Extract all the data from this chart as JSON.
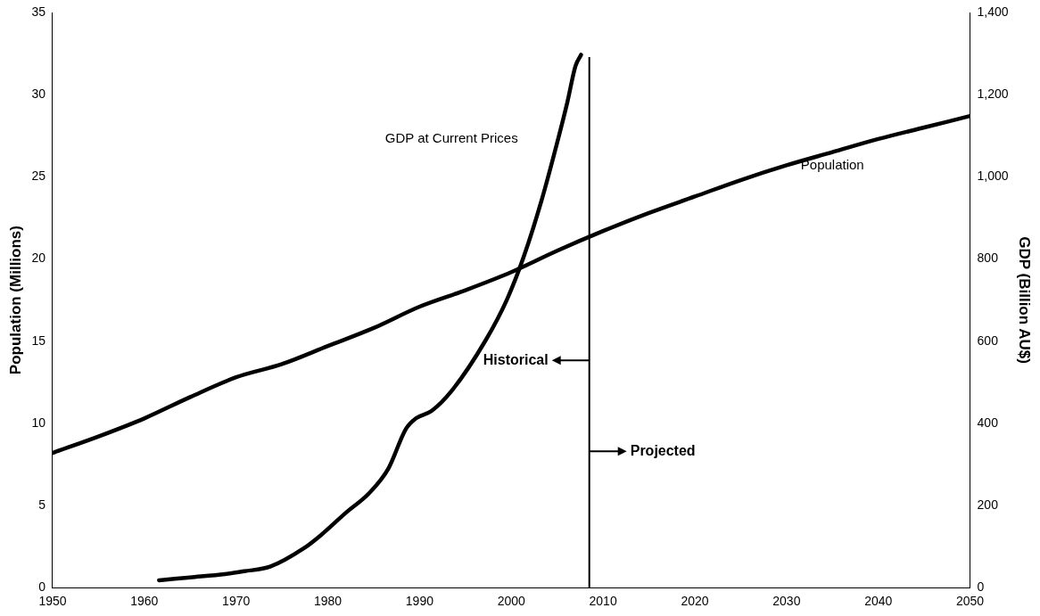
{
  "chart_data": {
    "type": "line",
    "ylabel": "Population (Millions)",
    "y2label": "GDP (Billion AU$)",
    "xlim": [
      1950,
      2050
    ],
    "xticks": [
      1950,
      1960,
      1970,
      1980,
      1990,
      2000,
      2010,
      2020,
      2030,
      2040,
      2050
    ],
    "ylim": [
      0,
      35
    ],
    "yticks": [
      0,
      5,
      10,
      15,
      20,
      25,
      30,
      35
    ],
    "y2lim": [
      0,
      1400
    ],
    "y2ticks": [
      0,
      200,
      400,
      600,
      800,
      {
        "value": 1000,
        "label": "1,000"
      },
      {
        "value": 1200,
        "label": "1,200"
      },
      {
        "value": 1400,
        "label": "1,400"
      }
    ],
    "grid": false,
    "legend": false,
    "marker": "none",
    "line_style": "solid",
    "series": [
      {
        "name": "Population",
        "color": "#000000",
        "x": [
          1950,
          1955,
          1960,
          1965,
          1970,
          1975,
          1980,
          1985,
          1990,
          1995,
          2000,
          2005,
          2010,
          2015,
          2020,
          2025,
          2030,
          2035,
          2040,
          2045,
          2050
        ],
        "values": [
          8.2,
          9.2,
          10.3,
          11.6,
          12.8,
          13.6,
          14.7,
          15.8,
          17.1,
          18.1,
          19.2,
          20.5,
          21.7,
          22.8,
          23.8,
          24.8,
          25.7,
          26.5,
          27.3,
          28.0,
          28.7
        ]
      },
      {
        "name": "GDP at Current Prices",
        "axis": "y2",
        "color": "#000000",
        "x": [
          1961.6,
          1965,
          1968.8,
          1970.9,
          1973.7,
          1977.4,
          1979.2,
          1982,
          1984.5,
          1986.6,
          1988.5,
          1989.6,
          1991.3,
          1993.5,
          1997.2,
          1999.5,
          2001.3,
          2003.3,
          2005.1,
          2006.1,
          2007,
          2007.6
        ],
        "values": [
          18,
          25,
          33,
          40,
          51,
          96,
          127,
          183,
          230,
          290,
          386,
          412,
          430,
          479,
          602,
          700,
          802,
          943,
          1092,
          1181,
          1270,
          1297
        ]
      }
    ],
    "ref_lines": [
      {
        "axis": "x",
        "value": 2008.5,
        "color": "#000000"
      }
    ],
    "annotations": [
      "Historical",
      "Projected"
    ]
  }
}
